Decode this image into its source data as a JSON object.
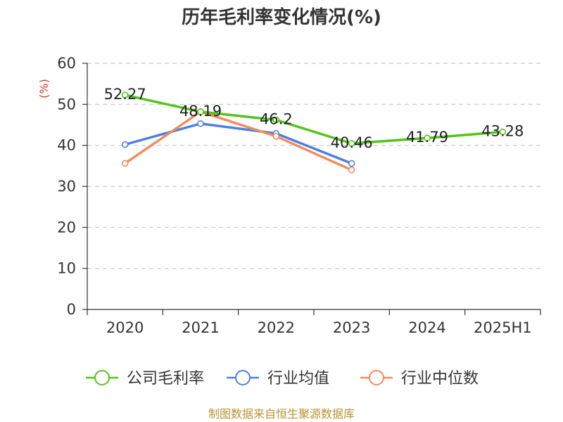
{
  "chart_data": {
    "type": "line",
    "title": "历年毛利率变化情况(%)",
    "unit_label": "(%)",
    "categories": [
      "2020",
      "2021",
      "2022",
      "2023",
      "2024",
      "2025H1"
    ],
    "ylim": [
      0,
      60
    ],
    "yticks": [
      0,
      10,
      20,
      30,
      40,
      50,
      60
    ],
    "grid": true,
    "legend_position": "bottom",
    "series": [
      {
        "name": "公司毛利率",
        "color": "#52c41a",
        "values": [
          52.27,
          48.19,
          46.2,
          40.46,
          41.79,
          43.28
        ],
        "labels": [
          "52.27",
          "48.19",
          "46.2",
          "40.46",
          "41.79",
          "43.28"
        ]
      },
      {
        "name": "行业均值",
        "color": "#4e7fe0",
        "values": [
          40.2,
          45.3,
          42.9,
          35.6,
          null,
          null
        ]
      },
      {
        "name": "行业中位数",
        "color": "#f28c5c",
        "values": [
          35.6,
          48.2,
          42.2,
          34.0,
          null,
          null
        ]
      }
    ]
  },
  "source_text": "制图数据来自恒生聚源数据库"
}
